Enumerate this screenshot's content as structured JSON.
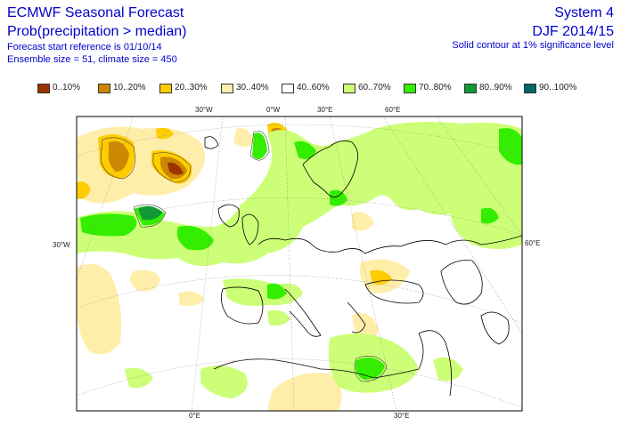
{
  "header": {
    "title": "ECMWF Seasonal Forecast",
    "subtitle": "Prob(precipitation > median)",
    "start_ref": "Forecast start reference is 01/10/14",
    "ensemble": "Ensemble size = 51, climate size = 450",
    "system": "System 4",
    "season": "DJF 2014/15",
    "contour_note": "Solid contour at 1% significance level"
  },
  "legend": [
    {
      "label": "0..10%",
      "color": "#9a3300"
    },
    {
      "label": "10..20%",
      "color": "#cc8800"
    },
    {
      "label": "20..30%",
      "color": "#ffcc00"
    },
    {
      "label": "30..40%",
      "color": "#ffeeaa"
    },
    {
      "label": "40..60%",
      "color": "#ffffff"
    },
    {
      "label": "60..70%",
      "color": "#ccff77"
    },
    {
      "label": "70..80%",
      "color": "#33ee00"
    },
    {
      "label": "80..90%",
      "color": "#119933"
    },
    {
      "label": "90..100%",
      "color": "#006666"
    }
  ],
  "map": {
    "top_ticks": [
      "30°W",
      "0°W",
      "30°E",
      "60°E"
    ],
    "bottom_ticks": [
      "0°E",
      "30°E"
    ],
    "left_ticks": [
      "30°W"
    ],
    "right_ticks": [
      "60°E"
    ]
  }
}
